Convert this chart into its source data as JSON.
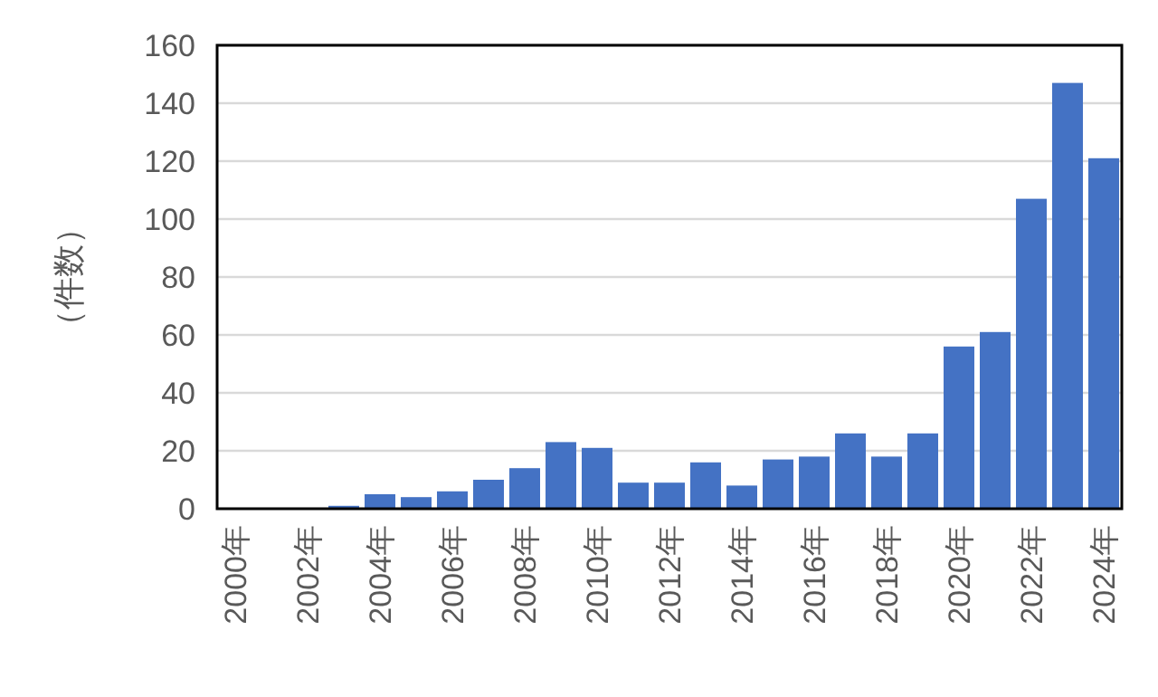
{
  "chart_data": {
    "type": "bar",
    "ylabel": "（件数）",
    "categories": [
      "2000年",
      null,
      "2002年",
      null,
      "2004年",
      null,
      "2006年",
      null,
      "2008年",
      null,
      "2010年",
      null,
      "2012年",
      null,
      "2014年",
      null,
      "2016年",
      null,
      "2018年",
      null,
      "2020年",
      null,
      "2022年",
      null,
      "2024年"
    ],
    "values": [
      0,
      0,
      0,
      1,
      5,
      4,
      6,
      10,
      14,
      23,
      21,
      9,
      9,
      16,
      8,
      17,
      18,
      26,
      18,
      26,
      56,
      61,
      107,
      147,
      121
    ],
    "color": "#4472c4",
    "ylim": [
      0,
      160
    ],
    "yticks": [
      0,
      20,
      40,
      60,
      80,
      100,
      120,
      140,
      160
    ],
    "grid": "y"
  }
}
